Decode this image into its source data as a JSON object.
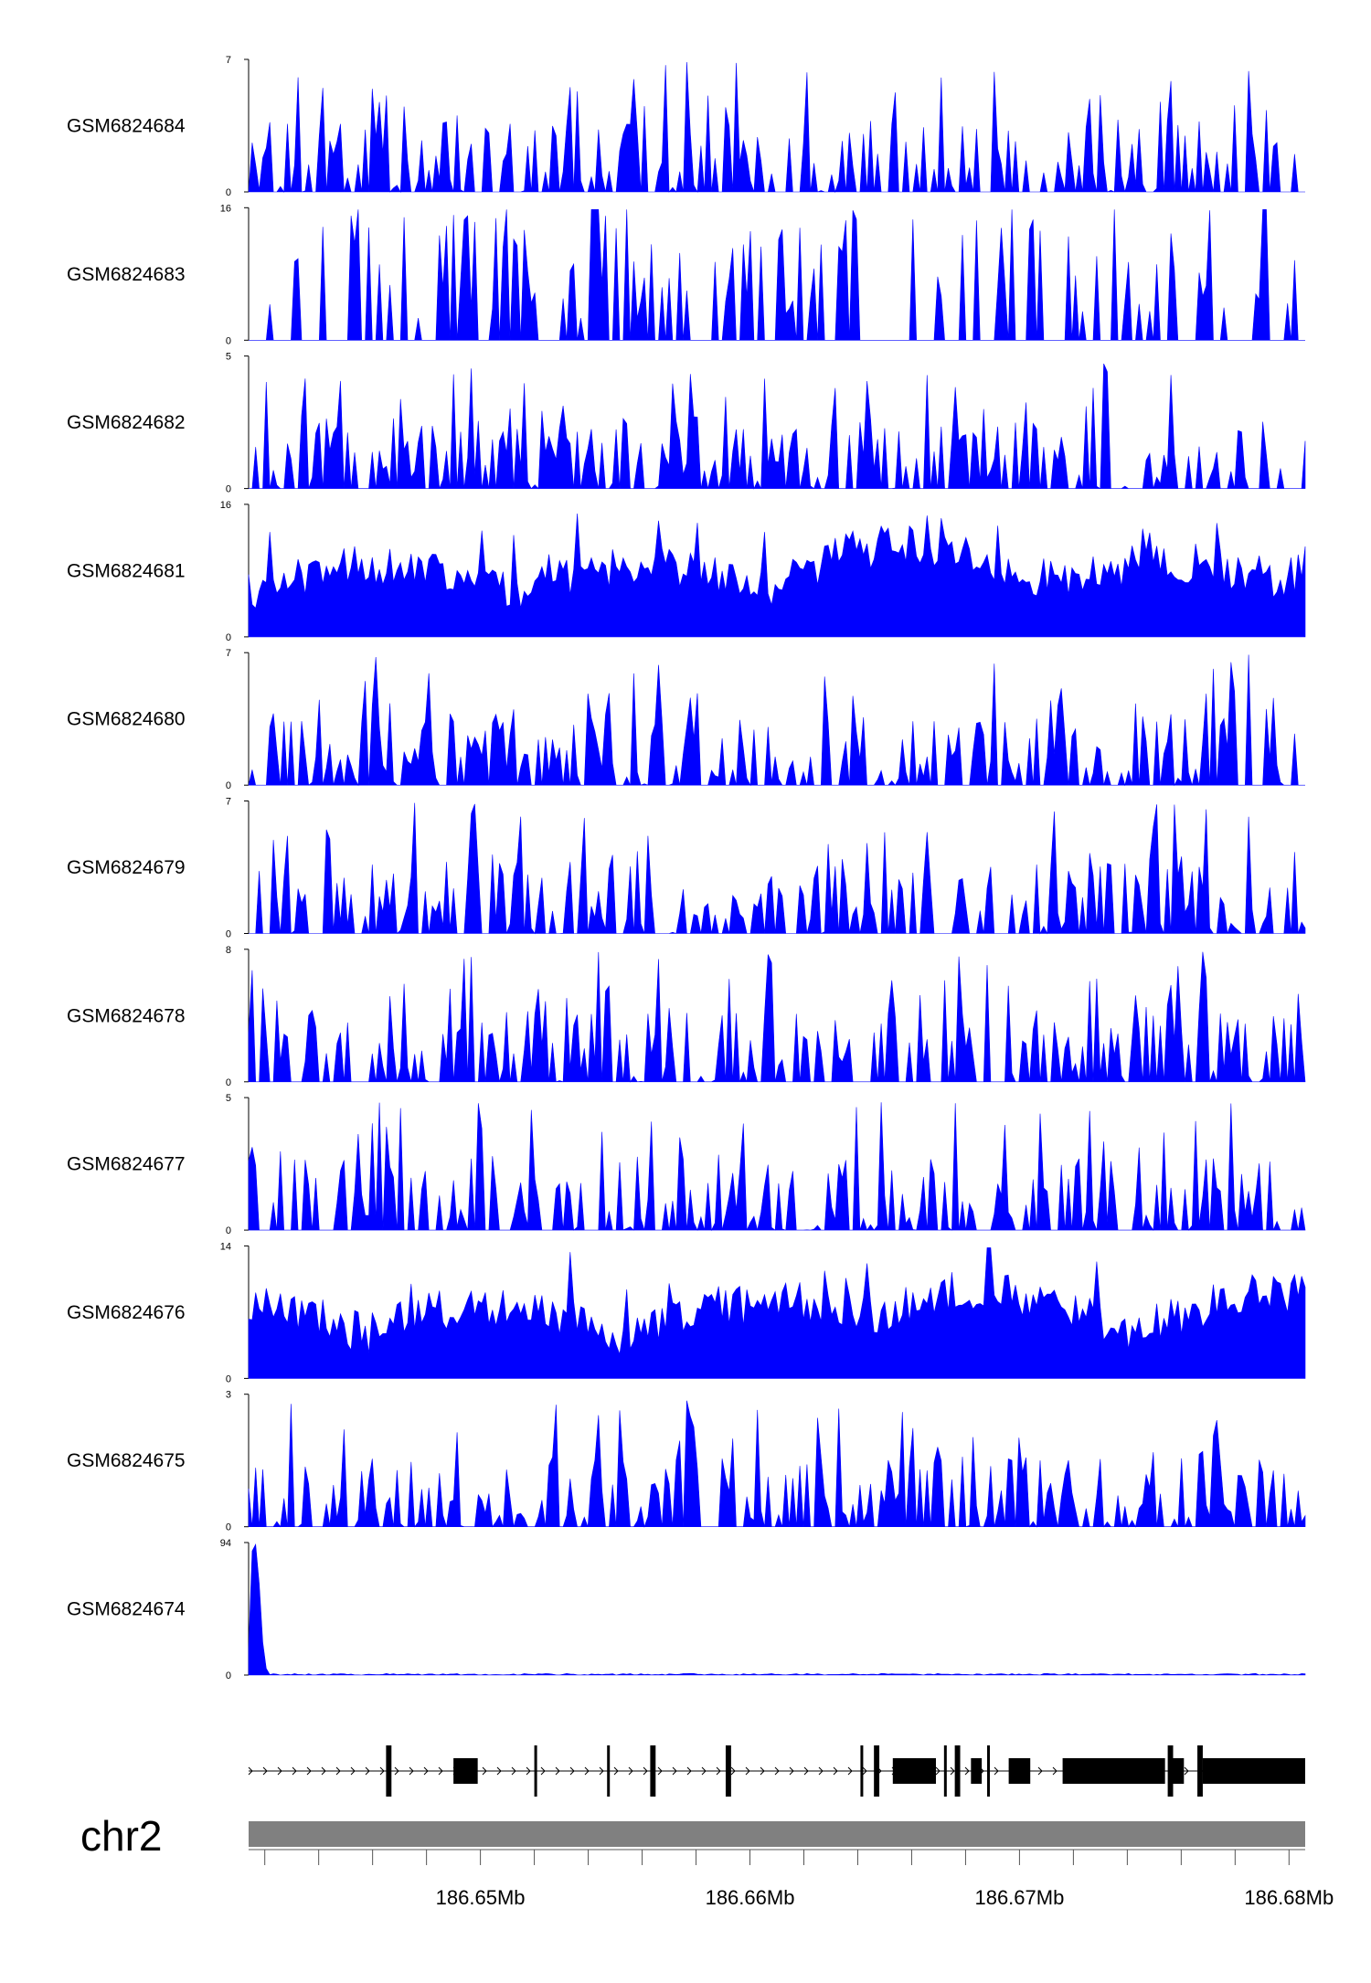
{
  "chart_data": {
    "type": "area",
    "title": "",
    "xlabel": "",
    "ylabel": "",
    "chromosome": "chr2",
    "x_range": [
      186.6414,
      186.6806
    ],
    "x_unit": "Mb",
    "x_ticks": [
      {
        "value": 186.65,
        "label": "186.65Mb"
      },
      {
        "value": 186.66,
        "label": "186.66Mb"
      },
      {
        "value": 186.67,
        "label": "186.67Mb"
      },
      {
        "value": 186.68,
        "label": "186.68Mb"
      }
    ],
    "fill_color": "#0000ff",
    "ideogram_color": "#808080",
    "tracks": [
      {
        "name": "GSM6824684",
        "ymax": 7,
        "ymin": 0
      },
      {
        "name": "GSM6824683",
        "ymax": 16,
        "ymin": 0
      },
      {
        "name": "GSM6824682",
        "ymax": 5,
        "ymin": 0
      },
      {
        "name": "GSM6824681",
        "ymax": 16,
        "ymin": 0
      },
      {
        "name": "GSM6824680",
        "ymax": 7,
        "ymin": 0
      },
      {
        "name": "GSM6824679",
        "ymax": 7,
        "ymin": 0
      },
      {
        "name": "GSM6824678",
        "ymax": 8,
        "ymin": 0
      },
      {
        "name": "GSM6824677",
        "ymax": 5,
        "ymin": 0
      },
      {
        "name": "GSM6824676",
        "ymax": 14,
        "ymin": 0
      },
      {
        "name": "GSM6824675",
        "ymax": 3,
        "ymin": 0
      },
      {
        "name": "GSM6824674",
        "ymax": 94,
        "ymin": 0
      }
    ],
    "gene_model": {
      "intron_span": [
        186.6414,
        186.6806
      ],
      "exons": [
        [
          186.6465,
          186.6467
        ],
        [
          186.649,
          186.6499
        ],
        [
          186.652,
          186.6521
        ],
        [
          186.6547,
          186.6548
        ],
        [
          186.6563,
          186.6565
        ],
        [
          186.6591,
          186.6593
        ],
        [
          186.6641,
          186.6642
        ],
        [
          186.6646,
          186.6648
        ],
        [
          186.6653,
          186.6669
        ],
        [
          186.6672,
          186.6673
        ],
        [
          186.6676,
          186.6678
        ],
        [
          186.6682,
          186.6686
        ],
        [
          186.6688,
          186.6689
        ],
        [
          186.6696,
          186.6704
        ],
        [
          186.6716,
          186.6754
        ],
        [
          186.6755,
          186.6757
        ],
        [
          186.6757,
          186.6761
        ],
        [
          186.6766,
          186.6768
        ],
        [
          186.6768,
          186.6806
        ]
      ]
    }
  }
}
